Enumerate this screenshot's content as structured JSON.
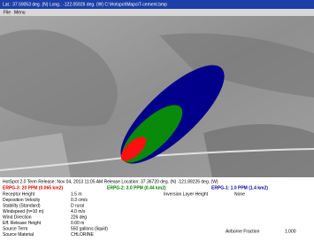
{
  "title_bar": "Lat.: 37.59053 deg. (N)   Long.: -122.05926 deg. (W)    C:\\Hotspot\\Maps\\T-cement.bmp",
  "menu": [
    "File",
    "Menu"
  ],
  "info": {
    "header": "HotSpot 2.0 Term Release: Nov 04, 2013 11:05 AM  Release Location: 37.36720 deg. (N)  -121.89226 deg. (W)",
    "contours": [
      {
        "text": "ERPG-3: 20 PPM (0.065 km2)",
        "color": "#e00000"
      },
      {
        "text": "ERPG-2: 3.0 PPM (0.44 km2)",
        "color": "#008000"
      },
      {
        "text": "ERPG-1: 1.0 PPM (1.4 km2)",
        "color": "#0000a0"
      }
    ],
    "params": [
      [
        "Receptor Height",
        "1.5 m"
      ],
      [
        "Deposition Velocity",
        "0.3 cm/s"
      ],
      [
        "Stability (Standard)",
        "D   rural"
      ],
      [
        "Windspeed (h=10 m)",
        "4.0 m/s"
      ],
      [
        "Wind Direction",
        "226 deg"
      ],
      [
        "Eff. Release Height",
        "0.00 m"
      ],
      [
        "Source Term",
        "550 gallons (liquid)"
      ],
      [
        "Source Material",
        "CHLORINE"
      ]
    ],
    "inversion": {
      "label": "Inversion Layer Height",
      "value": "None"
    },
    "airborne": {
      "label": "Airborne Fraction",
      "value": "1.000"
    }
  }
}
